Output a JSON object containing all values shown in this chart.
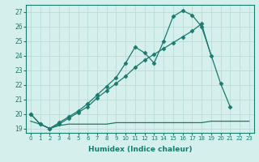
{
  "title": "",
  "xlabel": "Humidex (Indice chaleur)",
  "ylabel": "",
  "x_values": [
    0,
    1,
    2,
    3,
    4,
    5,
    6,
    7,
    8,
    9,
    10,
    11,
    12,
    13,
    14,
    15,
    16,
    17,
    18,
    19,
    20,
    21,
    22,
    23
  ],
  "line1_x": [
    0,
    1,
    2,
    3,
    4,
    5,
    6,
    7,
    8,
    9,
    10,
    11,
    12,
    13,
    14,
    15,
    16,
    17,
    18,
    20,
    21
  ],
  "line1_y": [
    20.0,
    19.3,
    19.0,
    19.4,
    19.8,
    20.2,
    20.7,
    21.3,
    21.9,
    22.5,
    23.5,
    24.6,
    24.2,
    23.5,
    25.0,
    26.7,
    27.1,
    26.8,
    26.0,
    22.1,
    20.5
  ],
  "line2_x": [
    0,
    1,
    2,
    3,
    4,
    5,
    6,
    7,
    8,
    9,
    10,
    11,
    12,
    13,
    14,
    15,
    16,
    17,
    18,
    19
  ],
  "line2_y": [
    20.0,
    19.3,
    19.0,
    19.3,
    19.7,
    20.1,
    20.5,
    21.1,
    21.6,
    22.1,
    22.6,
    23.2,
    23.7,
    24.1,
    24.5,
    24.9,
    25.3,
    25.7,
    26.2,
    24.0
  ],
  "line3_x": [
    0,
    1,
    2,
    3,
    4,
    5,
    6,
    7,
    8,
    9,
    10,
    11,
    12,
    13,
    14,
    15,
    16,
    17,
    18,
    19,
    20,
    21,
    22,
    23
  ],
  "line3_y": [
    19.5,
    19.3,
    19.0,
    19.2,
    19.3,
    19.3,
    19.3,
    19.3,
    19.3,
    19.4,
    19.4,
    19.4,
    19.4,
    19.4,
    19.4,
    19.4,
    19.4,
    19.4,
    19.4,
    19.5,
    19.5,
    19.5,
    19.5,
    19.5
  ],
  "xlim": [
    -0.5,
    23.5
  ],
  "ylim": [
    18.7,
    27.5
  ],
  "yticks": [
    19,
    20,
    21,
    22,
    23,
    24,
    25,
    26,
    27
  ],
  "xticks": [
    0,
    1,
    2,
    3,
    4,
    5,
    6,
    7,
    8,
    9,
    10,
    11,
    12,
    13,
    14,
    15,
    16,
    17,
    18,
    19,
    20,
    21,
    22,
    23
  ],
  "line_color": "#1a7a6e",
  "bg_color": "#d5efec",
  "grid_color": "#b8ddd9",
  "marker": "D",
  "marker_size": 2.5,
  "linewidth": 0.9
}
